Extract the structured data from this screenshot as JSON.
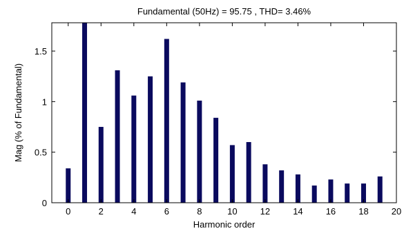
{
  "chart_data": {
    "type": "bar",
    "title": "Fundamental (50Hz) = 95.75 , THD= 3.46%",
    "xlabel": "Harmonic order",
    "ylabel": "Mag (% of Fundamental)",
    "xlim": [
      -1,
      20
    ],
    "ylim": [
      0,
      1.78
    ],
    "xticks": [
      0,
      2,
      4,
      6,
      8,
      10,
      12,
      14,
      16,
      18,
      20
    ],
    "yticks": [
      0,
      0.5,
      1,
      1.5
    ],
    "ytick_labels": [
      "0",
      "0.5",
      "1",
      "1.5"
    ],
    "grid": false,
    "bar_color": "#0a0a5e",
    "x": [
      0,
      1,
      2,
      3,
      4,
      5,
      6,
      7,
      8,
      9,
      10,
      11,
      12,
      13,
      14,
      15,
      16,
      17,
      18,
      19
    ],
    "values": [
      0.34,
      1.78,
      0.75,
      1.31,
      1.06,
      1.25,
      1.62,
      1.19,
      1.01,
      0.84,
      0.57,
      0.6,
      0.38,
      0.32,
      0.28,
      0.17,
      0.23,
      0.19,
      0.19,
      0.26
    ]
  }
}
